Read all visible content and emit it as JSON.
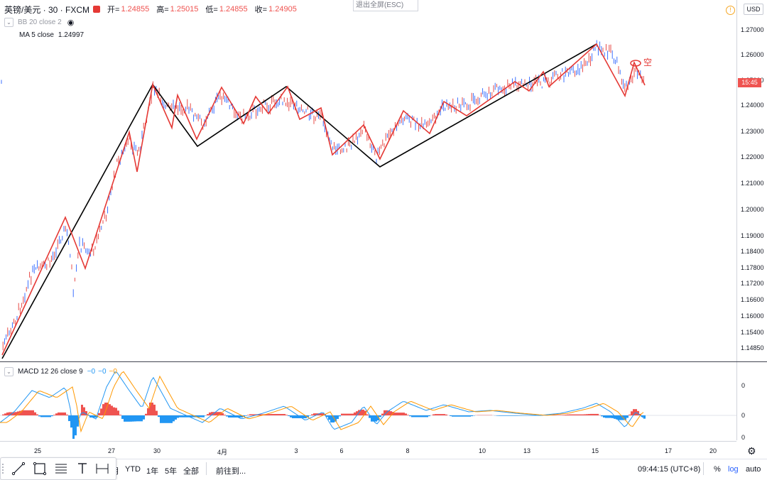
{
  "header": {
    "symbol": "英镑/美元 · 30 · FXCM",
    "open_label": "开=",
    "open": "1.24855",
    "high_label": "高=",
    "high": "1.25015",
    "low_label": "低=",
    "low": "1.24855",
    "close_label": "收=",
    "close": "1.24905",
    "accent_color": "#ef5350"
  },
  "exit_fullscreen": "退出全屏(ESC)",
  "indicators": {
    "bb": "BB 20 close 2",
    "ma_label": "MA 5 close",
    "ma_value": "1.24997",
    "macd_label": "MACD 12 26 close 9",
    "macd_values": [
      "−0",
      "−0",
      "−0"
    ],
    "macd_value_colors": [
      "#2196f3",
      "#2196f3",
      "#ff9800"
    ]
  },
  "price_axis": {
    "currency": "USD",
    "ticks": [
      "1.27000",
      "1.26000",
      "1.25000",
      "1.24000",
      "1.23000",
      "1.22000",
      "1.21000",
      "1.20000",
      "1.19000",
      "1.18400",
      "1.17800",
      "1.17200",
      "1.16600",
      "1.16000",
      "1.15400",
      "1.14850"
    ],
    "last_price_tag": "15:45"
  },
  "macd_axis": {
    "ticks": [
      "0",
      "0",
      "0"
    ]
  },
  "time_axis": {
    "ticks": [
      "25",
      "27",
      "30",
      "4月",
      "3",
      "6",
      "8",
      "10",
      "13",
      "15",
      "17",
      "20"
    ]
  },
  "annotation": {
    "short_label": "空"
  },
  "bottom_bar": {
    "ranges": [
      "月",
      "YTD",
      "1年",
      "5年",
      "全部"
    ],
    "goto": "前往到...",
    "clock": "09:44:15 (UTC+8)",
    "percent": "%",
    "log": "log",
    "auto": "auto",
    "active_color": "#2962ff"
  },
  "toolbox": {
    "tools": [
      "trend-line-icon",
      "rectangle-icon",
      "fib-icon",
      "text-icon",
      "measure-icon"
    ]
  },
  "colors": {
    "up": "#2962ff",
    "down": "#e53935",
    "zigzag_small": "#e53935",
    "zigzag_large": "#000000",
    "macd_fast": "#2196f3",
    "macd_slow": "#ff9800"
  }
}
